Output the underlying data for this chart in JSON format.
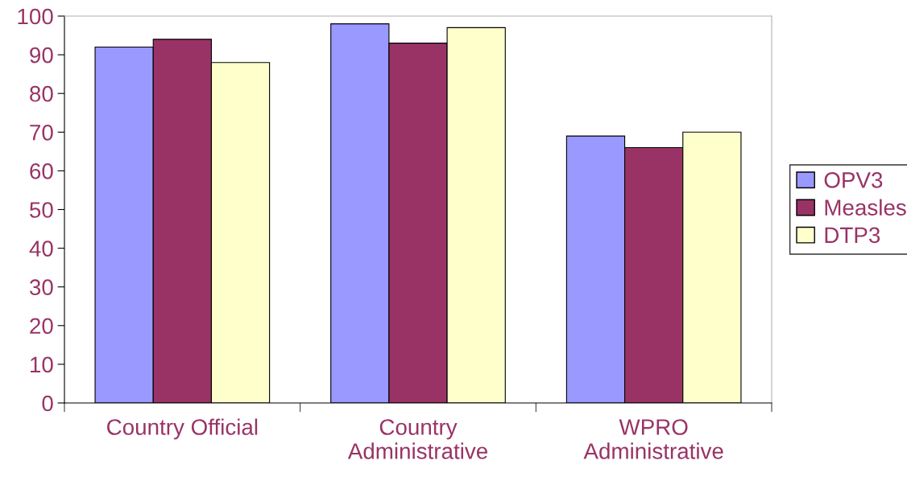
{
  "chart_data": {
    "type": "bar",
    "categories": [
      "Country Official",
      "Country\nAdministrative",
      "WPRO\nAdministrative"
    ],
    "series": [
      {
        "name": "OPV3",
        "color": "#9999ff",
        "values": [
          92,
          98,
          69
        ]
      },
      {
        "name": "Measles",
        "color": "#993366",
        "values": [
          94,
          93,
          66
        ]
      },
      {
        "name": "DTP3",
        "color": "#ffffcc",
        "values": [
          88,
          97,
          70
        ]
      }
    ],
    "ylim": [
      0,
      100
    ],
    "yticks": [
      0,
      10,
      20,
      30,
      40,
      50,
      60,
      70,
      80,
      90,
      100
    ],
    "grid": false,
    "legend": "right"
  }
}
